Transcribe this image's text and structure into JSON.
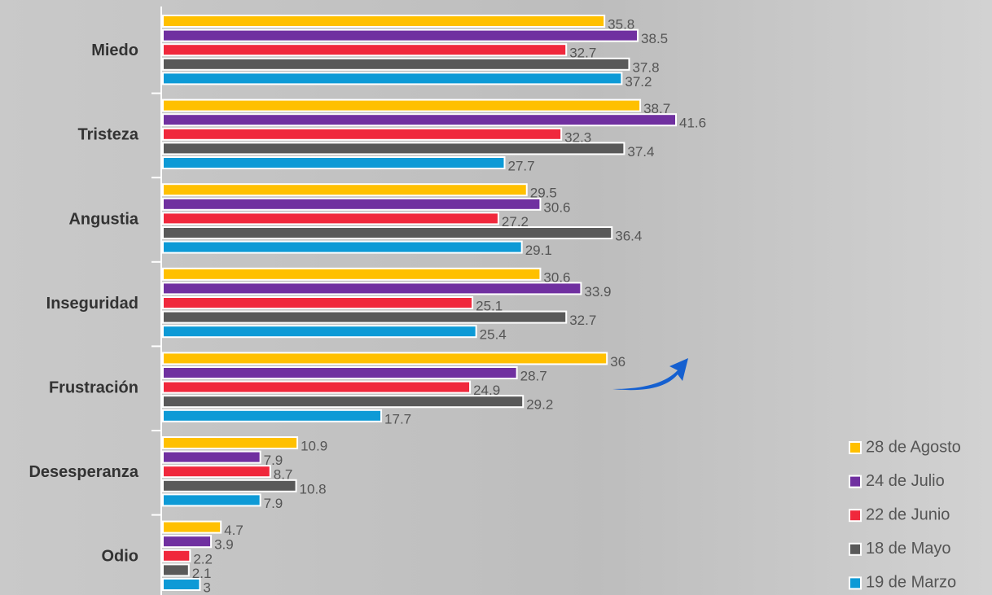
{
  "chart_data": {
    "type": "bar",
    "orientation": "horizontal",
    "categories": [
      "Miedo",
      "Tristeza",
      "Angustia",
      "Inseguridad",
      "Frustración",
      "Desesperanza",
      "Odio"
    ],
    "series": [
      {
        "name": "28 de Agosto",
        "color": "#ffc000",
        "values": [
          35.8,
          38.7,
          29.5,
          30.6,
          36,
          10.9,
          4.7
        ]
      },
      {
        "name": "24 de Julio",
        "color": "#7030a0",
        "values": [
          38.5,
          41.6,
          30.6,
          33.9,
          28.7,
          7.9,
          3.9
        ]
      },
      {
        "name": "22 de Junio",
        "color": "#f0283c",
        "values": [
          32.7,
          32.3,
          27.2,
          25.1,
          24.9,
          8.7,
          2.2
        ]
      },
      {
        "name": "18 de Mayo",
        "color": "#595959",
        "values": [
          37.8,
          37.4,
          36.4,
          32.7,
          29.2,
          10.8,
          2.1
        ]
      },
      {
        "name": "19 de Marzo",
        "color": "#0d9ad6",
        "values": [
          37.2,
          27.7,
          29.1,
          25.4,
          17.7,
          7.9,
          3
        ]
      }
    ]
  }
}
